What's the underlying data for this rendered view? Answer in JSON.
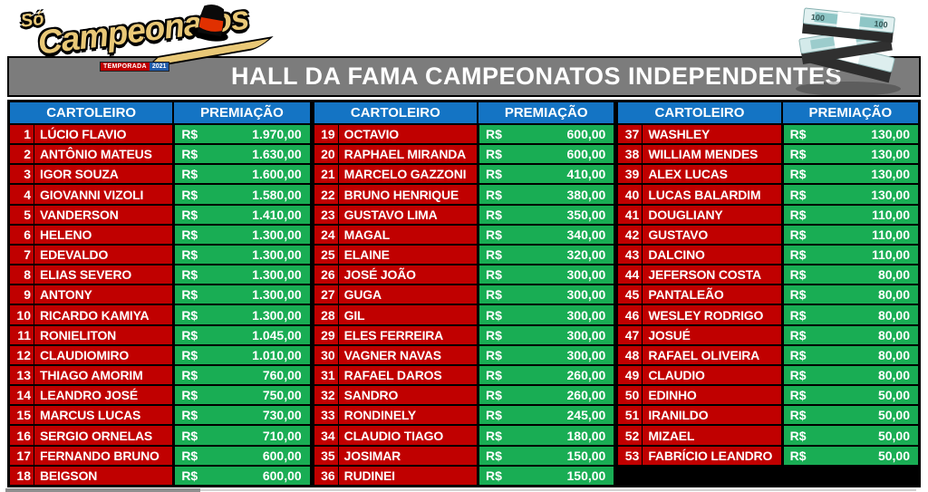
{
  "logo": {
    "prefix": "Só",
    "name": "Campeonatos",
    "badge_season": "TEMPORADA",
    "badge_year": "2021"
  },
  "header": {
    "title": "HALL DA FAMA CAMPEONATOS INDEPENDENTES"
  },
  "table": {
    "column_headers": {
      "player": "CARTOLEIRO",
      "prize": "PREMIAÇÃO"
    },
    "currency_symbol": "R$",
    "rows_per_group": 18,
    "entries": [
      {
        "rank": "1",
        "name": "LÚCIO FLAVIO",
        "amount": "1.970,00"
      },
      {
        "rank": "2",
        "name": "ANTÔNIO MATEUS",
        "amount": "1.630,00"
      },
      {
        "rank": "3",
        "name": "IGOR SOUZA",
        "amount": "1.600,00"
      },
      {
        "rank": "4",
        "name": "GIOVANNI VIZOLI",
        "amount": "1.580,00"
      },
      {
        "rank": "5",
        "name": "VANDERSON",
        "amount": "1.410,00"
      },
      {
        "rank": "6",
        "name": "HELENO",
        "amount": "1.300,00"
      },
      {
        "rank": "7",
        "name": "EDEVALDO",
        "amount": "1.300,00"
      },
      {
        "rank": "8",
        "name": "ELIAS SEVERO",
        "amount": "1.300,00"
      },
      {
        "rank": "9",
        "name": "ANTONY",
        "amount": "1.300,00"
      },
      {
        "rank": "10",
        "name": "RICARDO KAMIYA",
        "amount": "1.300,00"
      },
      {
        "rank": "11",
        "name": "RONIELITON",
        "amount": "1.045,00"
      },
      {
        "rank": "12",
        "name": "CLAUDIOMIRO",
        "amount": "1.010,00"
      },
      {
        "rank": "13",
        "name": "THIAGO AMORIM",
        "amount": "760,00"
      },
      {
        "rank": "14",
        "name": "LEANDRO JOSÉ",
        "amount": "750,00"
      },
      {
        "rank": "15",
        "name": "MARCUS LUCAS",
        "amount": "730,00"
      },
      {
        "rank": "16",
        "name": "SERGIO ORNELAS",
        "amount": "710,00"
      },
      {
        "rank": "17",
        "name": "FERNANDO BRUNO",
        "amount": "600,00"
      },
      {
        "rank": "18",
        "name": "BEIGSON",
        "amount": "600,00"
      },
      {
        "rank": "19",
        "name": "OCTAVIO",
        "amount": "600,00"
      },
      {
        "rank": "20",
        "name": "RAPHAEL MIRANDA",
        "amount": "600,00"
      },
      {
        "rank": "21",
        "name": "MARCELO GAZZONI",
        "amount": "410,00"
      },
      {
        "rank": "22",
        "name": "BRUNO HENRIQUE",
        "amount": "380,00"
      },
      {
        "rank": "23",
        "name": "GUSTAVO LIMA",
        "amount": "350,00"
      },
      {
        "rank": "24",
        "name": "MAGAL",
        "amount": "340,00"
      },
      {
        "rank": "25",
        "name": "ELAINE",
        "amount": "320,00"
      },
      {
        "rank": "26",
        "name": "JOSÉ JOÃO",
        "amount": "300,00"
      },
      {
        "rank": "27",
        "name": "GUGA",
        "amount": "300,00"
      },
      {
        "rank": "28",
        "name": "GIL",
        "amount": "300,00"
      },
      {
        "rank": "29",
        "name": "ELES FERREIRA",
        "amount": "300,00"
      },
      {
        "rank": "30",
        "name": "VAGNER NAVAS",
        "amount": "300,00"
      },
      {
        "rank": "31",
        "name": "RAFAEL DAROS",
        "amount": "260,00"
      },
      {
        "rank": "32",
        "name": "SANDRO",
        "amount": "260,00"
      },
      {
        "rank": "33",
        "name": "RONDINELY",
        "amount": "245,00"
      },
      {
        "rank": "34",
        "name": "CLAUDIO TIAGO",
        "amount": "180,00"
      },
      {
        "rank": "35",
        "name": "JOSIMAR",
        "amount": "150,00"
      },
      {
        "rank": "36",
        "name": "RUDINEI",
        "amount": "150,00"
      },
      {
        "rank": "37",
        "name": "WASHLEY",
        "amount": "130,00"
      },
      {
        "rank": "38",
        "name": "WILLIAM MENDES",
        "amount": "130,00"
      },
      {
        "rank": "39",
        "name": "ALEX LUCAS",
        "amount": "130,00"
      },
      {
        "rank": "40",
        "name": "LUCAS BALARDIM",
        "amount": "130,00"
      },
      {
        "rank": "41",
        "name": "DOUGLIANY",
        "amount": "110,00"
      },
      {
        "rank": "42",
        "name": "GUSTAVO",
        "amount": "110,00"
      },
      {
        "rank": "43",
        "name": "DALCINO",
        "amount": "110,00"
      },
      {
        "rank": "44",
        "name": "JEFERSON COSTA",
        "amount": "80,00"
      },
      {
        "rank": "45",
        "name": "PANTALEÃO",
        "amount": "80,00"
      },
      {
        "rank": "46",
        "name": "WESLEY RODRIGO",
        "amount": "80,00"
      },
      {
        "rank": "47",
        "name": "JOSUÉ",
        "amount": "80,00"
      },
      {
        "rank": "48",
        "name": "RAFAEL OLIVEIRA",
        "amount": "80,00"
      },
      {
        "rank": "49",
        "name": "CLAUDIO",
        "amount": "80,00"
      },
      {
        "rank": "50",
        "name": "EDINHO",
        "amount": "50,00"
      },
      {
        "rank": "51",
        "name": "IRANILDO",
        "amount": "50,00"
      },
      {
        "rank": "52",
        "name": "MIZAEL",
        "amount": "50,00"
      },
      {
        "rank": "53",
        "name": "FABRÍCIO LEANDRO",
        "amount": "50,00"
      }
    ]
  },
  "colors": {
    "player_cell": "#c00000",
    "prize_cell": "#19ad54",
    "column_header": "#1474c4",
    "title_bar": "#7c7c7c",
    "logo_gold": "#e9c877"
  }
}
